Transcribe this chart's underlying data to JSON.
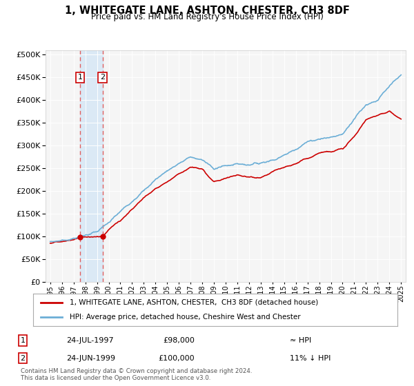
{
  "title": "1, WHITEGATE LANE, ASHTON, CHESTER, CH3 8DF",
  "subtitle": "Price paid vs. HM Land Registry's House Price Index (HPI)",
  "ytick_values": [
    0,
    50000,
    100000,
    150000,
    200000,
    250000,
    300000,
    350000,
    400000,
    450000,
    500000
  ],
  "x_start_year": 1995,
  "x_end_year": 2025,
  "sale1_year": 1997.56,
  "sale1_price": 98000,
  "sale1_label": "1",
  "sale1_date": "24-JUL-1997",
  "sale1_hpi_relation": "≈ HPI",
  "sale2_year": 1999.48,
  "sale2_price": 100000,
  "sale2_label": "2",
  "sale2_date": "24-JUN-1999",
  "sale2_hpi_relation": "11% ↓ HPI",
  "hpi_color": "#6baed6",
  "sale_color": "#cc0000",
  "dot_color": "#cc0000",
  "vline_color": "#e06060",
  "shade_color": "#d0e4f5",
  "legend_label_sale": "1, WHITEGATE LANE, ASHTON, CHESTER,  CH3 8DF (detached house)",
  "legend_label_hpi": "HPI: Average price, detached house, Cheshire West and Chester",
  "footer_text": "Contains HM Land Registry data © Crown copyright and database right 2024.\nThis data is licensed under the Open Government Licence v3.0.",
  "background_color": "#ffffff",
  "plot_bg_color": "#f5f5f5",
  "hpi_nodes_t": [
    1995,
    1996,
    1997,
    1998,
    1999,
    2000,
    2001,
    2002,
    2003,
    2004,
    2005,
    2006,
    2007,
    2008,
    2009,
    2010,
    2011,
    2012,
    2013,
    2014,
    2015,
    2016,
    2017,
    2018,
    2019,
    2020,
    2021,
    2022,
    2023,
    2024,
    2025
  ],
  "hpi_nodes_v": [
    88000,
    91000,
    95000,
    103000,
    110000,
    130000,
    155000,
    178000,
    200000,
    225000,
    245000,
    260000,
    275000,
    268000,
    250000,
    255000,
    260000,
    258000,
    262000,
    268000,
    278000,
    293000,
    308000,
    315000,
    318000,
    325000,
    360000,
    390000,
    400000,
    430000,
    455000
  ],
  "sale_nodes_t": [
    1995,
    1996,
    1997,
    1997.56,
    1998,
    1999,
    1999.48,
    2000,
    2001,
    2002,
    2003,
    2004,
    2005,
    2006,
    2007,
    2008,
    2009,
    2010,
    2011,
    2012,
    2013,
    2014,
    2015,
    2016,
    2017,
    2018,
    2019,
    2020,
    2021,
    2022,
    2023,
    2024,
    2025
  ],
  "sale_nodes_v": [
    86000,
    88000,
    93000,
    98000,
    99000,
    100000,
    100000,
    115000,
    135000,
    160000,
    185000,
    205000,
    220000,
    238000,
    252000,
    248000,
    220000,
    228000,
    235000,
    230000,
    228000,
    242000,
    252000,
    260000,
    272000,
    284000,
    288000,
    292000,
    320000,
    356000,
    368000,
    375000,
    358000
  ]
}
